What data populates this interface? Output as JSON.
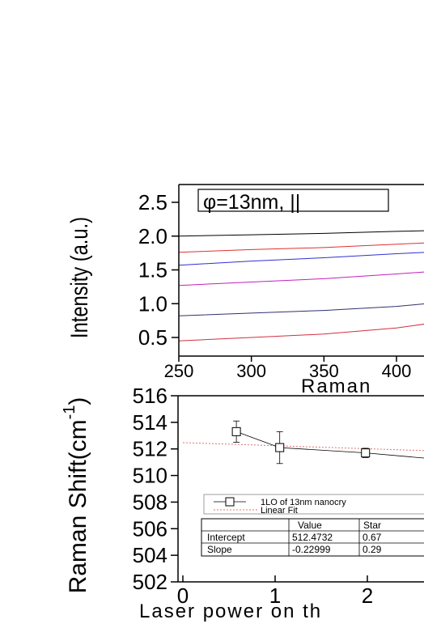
{
  "chart_data": [
    {
      "type": "line",
      "annotation": "φ=13nm, ||",
      "xlabel": "Raman",
      "ylabel": "Intensity (a.u.)",
      "xlim": [
        250,
        420
      ],
      "ylim": [
        0.3,
        2.75
      ],
      "xticks": [
        "250",
        "300",
        "350",
        "400"
      ],
      "yticks": [
        "0.5",
        "1.0",
        "1.5",
        "2.0",
        "2.5"
      ],
      "grid": false,
      "series": [
        {
          "color": "#000000",
          "x": [
            250,
            300,
            350,
            400,
            420
          ],
          "values": [
            2.0,
            2.02,
            2.04,
            2.07,
            2.08
          ]
        },
        {
          "color": "#e03030",
          "x": [
            250,
            300,
            350,
            400,
            420
          ],
          "values": [
            1.76,
            1.8,
            1.83,
            1.88,
            1.9
          ]
        },
        {
          "color": "#3030d0",
          "x": [
            250,
            300,
            350,
            400,
            420
          ],
          "values": [
            1.57,
            1.63,
            1.68,
            1.74,
            1.76
          ]
        },
        {
          "color": "#c020c0",
          "x": [
            250,
            300,
            350,
            400,
            420
          ],
          "values": [
            1.27,
            1.32,
            1.37,
            1.44,
            1.47
          ]
        },
        {
          "color": "#303070",
          "x": [
            250,
            300,
            350,
            400,
            420
          ],
          "values": [
            0.82,
            0.86,
            0.9,
            0.96,
            1.0
          ]
        },
        {
          "color": "#d03040",
          "x": [
            250,
            300,
            350,
            400,
            420
          ],
          "values": [
            0.45,
            0.5,
            0.55,
            0.64,
            0.7
          ]
        }
      ]
    },
    {
      "type": "scatter",
      "xlabel": "Laser power on th",
      "ylabel": "Raman Shift(cm",
      "ylabel_sup": "-1",
      "ylabel_close": ")",
      "xlim": [
        0,
        2.8
      ],
      "ylim": [
        502,
        516
      ],
      "xticks": [
        "0",
        "1",
        "2"
      ],
      "yticks": [
        "502",
        "504",
        "506",
        "508",
        "510",
        "512",
        "514",
        "516"
      ],
      "grid": false,
      "series": [
        {
          "name": "1LO of 13nm nanocry",
          "color": "#000000",
          "x": [
            0.58,
            1.05,
            1.98,
            2.8
          ],
          "values": [
            513.3,
            512.1,
            511.7,
            511.2
          ],
          "err": [
            0.8,
            1.2,
            0.35,
            0.0
          ]
        },
        {
          "name": "Linear Fit",
          "color": "#e07070",
          "x": [
            0.0,
            2.8
          ],
          "values": [
            512.4732,
            511.829
          ]
        }
      ],
      "fit_table": {
        "headers": [
          "",
          "Value",
          "Star"
        ],
        "rows": [
          [
            "Intercept",
            "512.4732",
            "0.67"
          ],
          [
            "Slope",
            "-0.22999",
            "0.29"
          ]
        ]
      }
    }
  ]
}
